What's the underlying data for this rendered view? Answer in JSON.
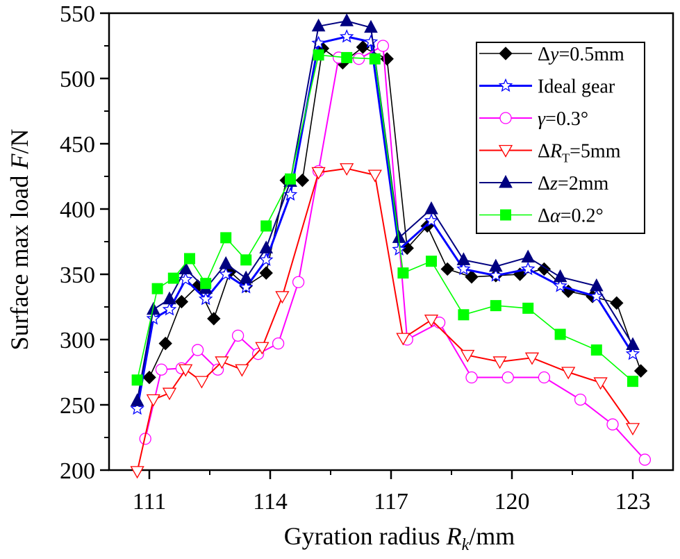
{
  "chart_data": {
    "type": "line",
    "title": "",
    "xlabel": "Gyration radius R_k/mm",
    "xlabel_parts": {
      "prefix": "Gyration radius ",
      "symbol": "R",
      "subscript": "k",
      "suffix": "/mm"
    },
    "ylabel": "Surface max load F/N",
    "ylabel_parts": {
      "prefix": "Surface max load ",
      "symbol": "F",
      "suffix": "/N"
    },
    "xlim": [
      110,
      124
    ],
    "ylim": [
      200,
      550
    ],
    "xticks": [
      111,
      114,
      117,
      120,
      123
    ],
    "xtick_labels": [
      "111",
      "114",
      "117",
      "120",
      "123"
    ],
    "yticks": [
      200,
      250,
      300,
      350,
      400,
      450,
      500,
      550
    ],
    "ytick_labels": [
      "200",
      "250",
      "300",
      "350",
      "400",
      "450",
      "500",
      "550"
    ],
    "grid": false,
    "legend_position": "top-right",
    "series": [
      {
        "name": "Δy=0.5mm",
        "legend": {
          "delta": "Δ",
          "symbol": "y",
          "rest": "=0.5mm"
        },
        "color": "#000000",
        "marker": "diamond-filled",
        "x": [
          111.0,
          111.4,
          111.8,
          112.2,
          112.6,
          113.0,
          113.4,
          113.9,
          114.4,
          114.8,
          115.3,
          115.8,
          116.3,
          116.9,
          117.4,
          117.9,
          118.4,
          119.0,
          119.6,
          120.2,
          120.8,
          121.4,
          122.0,
          122.6,
          123.2
        ],
        "values": [
          271,
          297,
          329,
          341,
          316,
          352,
          341,
          351,
          422,
          422,
          523,
          512,
          524,
          515,
          370,
          387,
          354,
          348,
          349,
          350,
          354,
          337,
          333,
          328,
          276
        ]
      },
      {
        "name": "Ideal gear",
        "legend": {
          "delta": "",
          "symbol": "",
          "rest": "Ideal gear"
        },
        "color": "#0000ff",
        "marker": "star-open",
        "x": [
          110.7,
          111.1,
          111.5,
          111.9,
          112.4,
          112.9,
          113.4,
          113.9,
          114.5,
          115.2,
          115.9,
          116.5,
          117.2,
          118.0,
          118.8,
          119.6,
          120.4,
          121.2,
          122.1,
          123.0
        ],
        "values": [
          247,
          316,
          323,
          346,
          331,
          350,
          340,
          361,
          411,
          527,
          532,
          528,
          369,
          391,
          354,
          349,
          354,
          341,
          333,
          289
        ]
      },
      {
        "name": "γ=0.3°",
        "legend": {
          "delta": "",
          "symbol": "γ",
          "rest": "=0.3°"
        },
        "color": "#ff00ff",
        "marker": "circle-open",
        "x": [
          110.9,
          111.3,
          111.8,
          112.2,
          112.7,
          113.2,
          113.7,
          114.2,
          114.7,
          115.2,
          115.7,
          116.2,
          116.8,
          117.4,
          118.2,
          119.0,
          119.9,
          120.8,
          121.7,
          122.5,
          123.3
        ],
        "values": [
          224,
          277,
          278,
          292,
          277,
          303,
          289,
          297,
          344,
          429,
          516,
          515,
          525,
          300,
          313,
          271,
          271,
          271,
          254,
          235,
          208
        ]
      },
      {
        "name": "ΔR_T=5mm",
        "legend": {
          "delta": "Δ",
          "symbol": "R",
          "subscript": "T",
          "rest": "=5mm"
        },
        "color": "#ff0000",
        "marker": "triangle-down-open",
        "x": [
          110.7,
          111.1,
          111.5,
          111.9,
          112.3,
          112.8,
          113.3,
          113.8,
          114.3,
          115.2,
          115.9,
          116.6,
          117.3,
          118.0,
          118.9,
          119.7,
          120.5,
          121.4,
          122.2,
          123.0
        ],
        "values": [
          199,
          254,
          259,
          277,
          268,
          283,
          277,
          294,
          333,
          428,
          431,
          426,
          301,
          315,
          288,
          283,
          286,
          275,
          267,
          232
        ]
      },
      {
        "name": "Δz=2mm",
        "legend": {
          "delta": "Δ",
          "symbol": "z",
          "rest": "=2mm"
        },
        "color": "#000080",
        "marker": "triangle-up-filled",
        "x": [
          110.7,
          111.1,
          111.5,
          111.9,
          112.4,
          112.9,
          113.4,
          113.9,
          114.5,
          115.2,
          115.9,
          116.5,
          117.2,
          118.0,
          118.8,
          119.6,
          120.4,
          121.2,
          122.1,
          123.0
        ],
        "values": [
          253,
          323,
          331,
          354,
          339,
          358,
          347,
          370,
          421,
          540,
          544,
          539,
          378,
          400,
          361,
          356,
          363,
          348,
          341,
          296
        ]
      },
      {
        "name": "Δα=0.2°",
        "legend": {
          "delta": "Δ",
          "symbol": "α",
          "rest": "=0.2°"
        },
        "color": "#00ff00",
        "marker": "square-filled",
        "x": [
          110.7,
          111.2,
          111.6,
          112.0,
          112.4,
          112.9,
          113.4,
          113.9,
          114.5,
          115.2,
          115.9,
          116.6,
          117.3,
          118.0,
          118.8,
          119.6,
          120.4,
          121.2,
          122.1,
          123.0
        ],
        "values": [
          269,
          339,
          347,
          362,
          343,
          378,
          361,
          387,
          423,
          518,
          516,
          515,
          351,
          360,
          319,
          326,
          324,
          304,
          292,
          268
        ]
      }
    ]
  }
}
